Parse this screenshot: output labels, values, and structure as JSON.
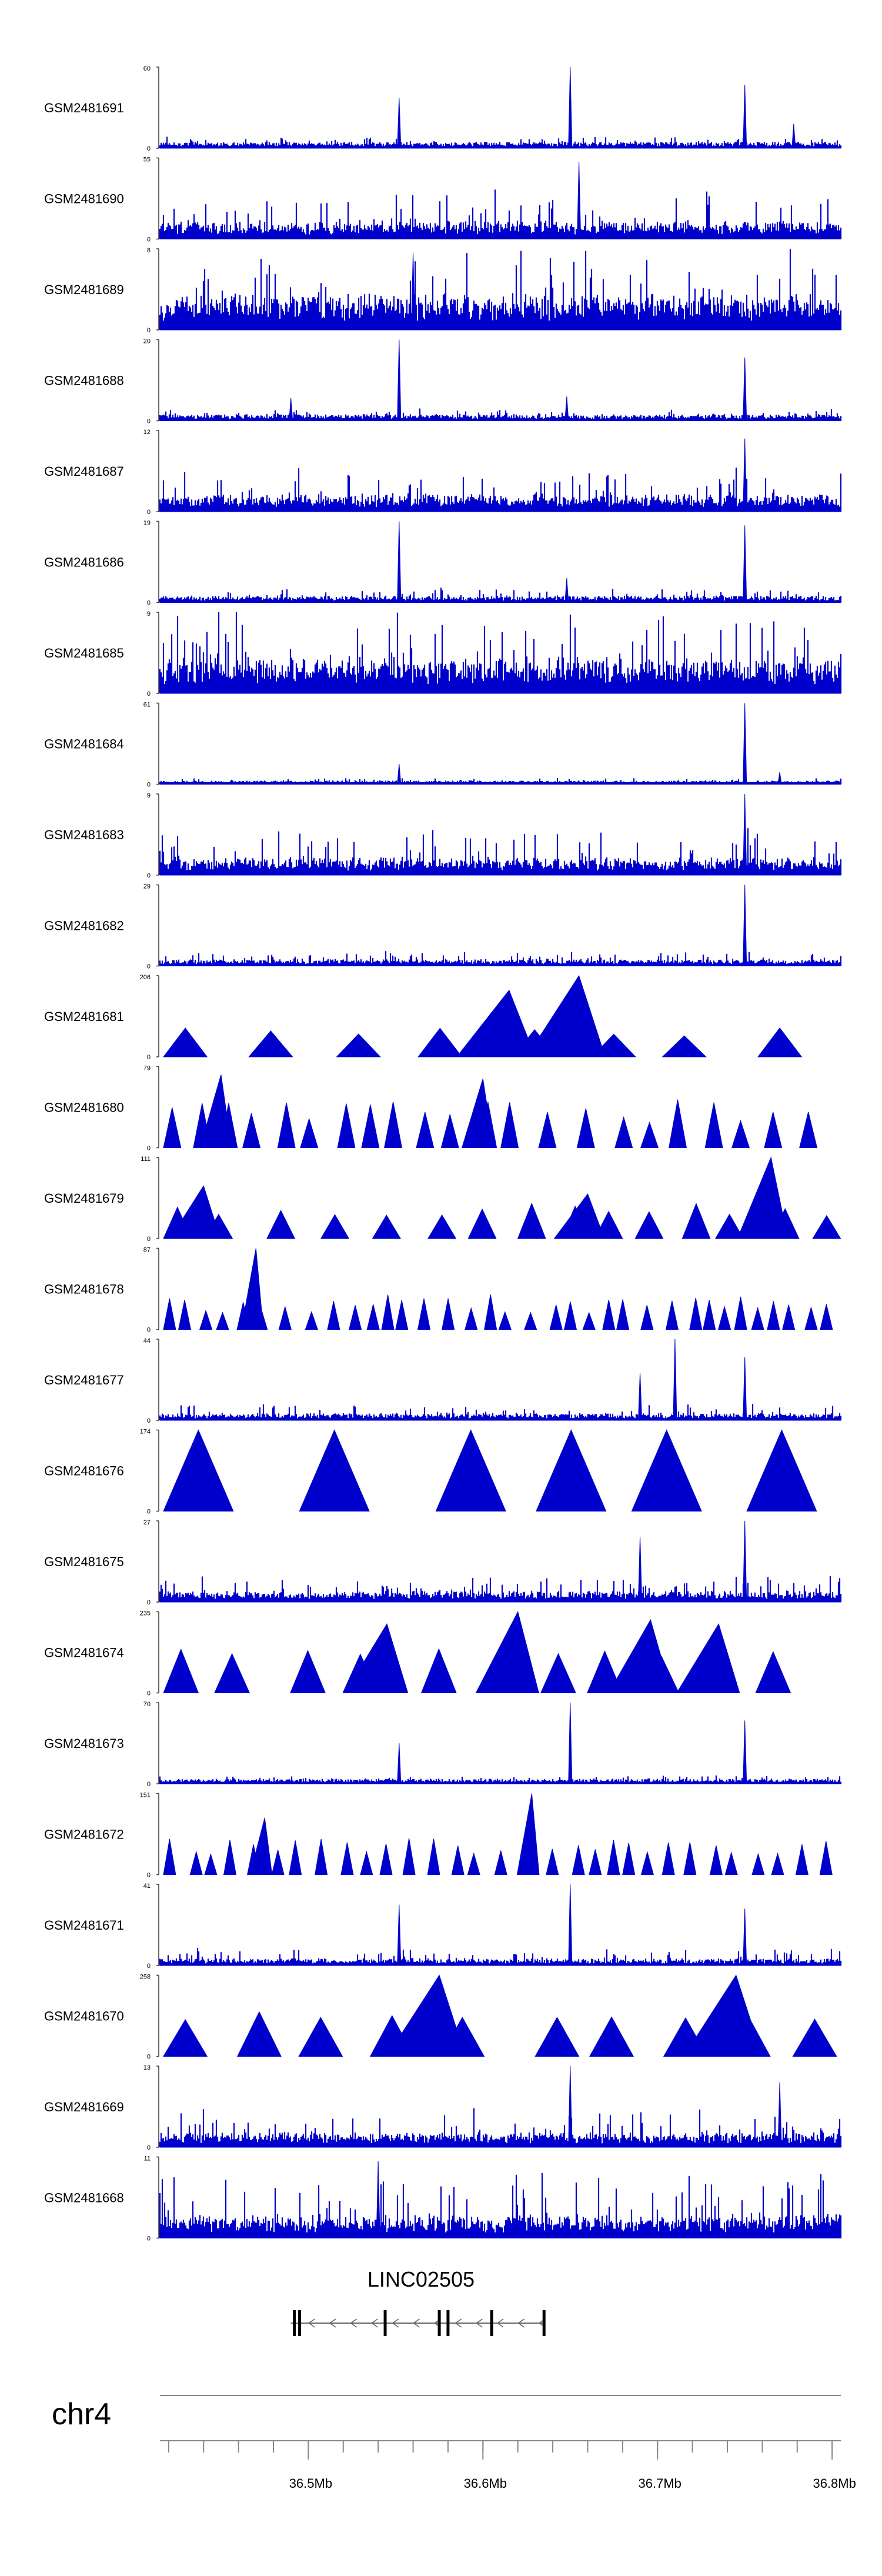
{
  "chart_data": {
    "type": "area",
    "chromosome": "chr4",
    "x_range_mb": [
      36.415,
      36.805
    ],
    "x_ticks": [
      {
        "mb": 36.5,
        "label": "36.5Mb"
      },
      {
        "mb": 36.6,
        "label": "36.6Mb"
      },
      {
        "mb": 36.7,
        "label": "36.7Mb"
      },
      {
        "mb": 36.8,
        "label": "36.8Mb"
      }
    ],
    "gene": {
      "name": "LINC02505",
      "start_mb": 36.49,
      "end_mb": 36.635,
      "exons_mb": [
        36.492,
        36.495,
        36.544,
        36.575,
        36.58,
        36.605,
        36.635
      ]
    },
    "tracks": [
      {
        "name": "GSM2481691",
        "ymin": 0,
        "ymax": 60,
        "style": "noise",
        "base": 0.05,
        "noise": 0.08,
        "peaks": [
          {
            "mb": 36.552,
            "h": 0.62
          },
          {
            "mb": 36.65,
            "h": 1.0
          },
          {
            "mb": 36.75,
            "h": 0.78
          },
          {
            "mb": 36.778,
            "h": 0.3
          }
        ]
      },
      {
        "name": "GSM2481690",
        "ymin": 0,
        "ymax": 55,
        "style": "noise",
        "base": 0.12,
        "noise": 0.45,
        "peaks": [
          {
            "mb": 36.655,
            "h": 0.95
          }
        ]
      },
      {
        "name": "GSM2481689",
        "ymin": 0,
        "ymax": 8,
        "style": "noise",
        "base": 0.25,
        "noise": 0.75,
        "peaks": [
          {
            "mb": 36.56,
            "h": 0.95
          }
        ]
      },
      {
        "name": "GSM2481688",
        "ymin": 0,
        "ymax": 20,
        "style": "noise",
        "base": 0.05,
        "noise": 0.1,
        "peaks": [
          {
            "mb": 36.552,
            "h": 1.0
          },
          {
            "mb": 36.49,
            "h": 0.28
          },
          {
            "mb": 36.648,
            "h": 0.3
          },
          {
            "mb": 36.75,
            "h": 0.78
          }
        ]
      },
      {
        "name": "GSM2481687",
        "ymin": 0,
        "ymax": 12,
        "style": "noise",
        "base": 0.12,
        "noise": 0.4,
        "peaks": [
          {
            "mb": 36.75,
            "h": 0.9
          }
        ]
      },
      {
        "name": "GSM2481686",
        "ymin": 0,
        "ymax": 19,
        "style": "noise",
        "base": 0.05,
        "noise": 0.12,
        "peaks": [
          {
            "mb": 36.552,
            "h": 1.0
          },
          {
            "mb": 36.648,
            "h": 0.3
          },
          {
            "mb": 36.75,
            "h": 0.95
          }
        ]
      },
      {
        "name": "GSM2481685",
        "ymin": 0,
        "ymax": 9,
        "style": "noise",
        "base": 0.25,
        "noise": 0.75,
        "peaks": []
      },
      {
        "name": "GSM2481684",
        "ymin": 0,
        "ymax": 61,
        "style": "noise",
        "base": 0.03,
        "noise": 0.05,
        "peaks": [
          {
            "mb": 36.552,
            "h": 0.25
          },
          {
            "mb": 36.75,
            "h": 1.0
          },
          {
            "mb": 36.77,
            "h": 0.15
          }
        ]
      },
      {
        "name": "GSM2481683",
        "ymin": 0,
        "ymax": 9,
        "style": "noise",
        "base": 0.12,
        "noise": 0.45,
        "peaks": [
          {
            "mb": 36.75,
            "h": 1.0
          }
        ]
      },
      {
        "name": "GSM2481682",
        "ymin": 0,
        "ymax": 29,
        "style": "noise",
        "base": 0.05,
        "noise": 0.12,
        "peaks": [
          {
            "mb": 36.75,
            "h": 1.0
          }
        ]
      },
      {
        "name": "GSM2481681",
        "ymin": 0,
        "ymax": 206,
        "style": "tri",
        "seed": 11,
        "triW": 0.025,
        "triH": [
          0.25,
          0.42
        ],
        "bigs": [
          {
            "mb": 36.615,
            "h": 0.82
          },
          {
            "mb": 36.655,
            "h": 1.0
          }
        ]
      },
      {
        "name": "GSM2481680",
        "ymin": 0,
        "ymax": 79,
        "style": "tri",
        "seed": 12,
        "triW": 0.01,
        "triH": [
          0.3,
          0.6
        ],
        "bigs": [
          {
            "mb": 36.45,
            "h": 0.9
          },
          {
            "mb": 36.6,
            "h": 0.85
          }
        ]
      },
      {
        "name": "GSM2481679",
        "ymin": 0,
        "ymax": 111,
        "style": "tri",
        "seed": 13,
        "triW": 0.016,
        "triH": [
          0.25,
          0.45
        ],
        "bigs": [
          {
            "mb": 36.44,
            "h": 0.65
          },
          {
            "mb": 36.66,
            "h": 0.55
          },
          {
            "mb": 36.765,
            "h": 1.0
          }
        ]
      },
      {
        "name": "GSM2481678",
        "ymin": 0,
        "ymax": 87,
        "style": "tri",
        "seed": 14,
        "triW": 0.007,
        "triH": [
          0.2,
          0.45
        ],
        "bigs": [
          {
            "mb": 36.47,
            "h": 1.0
          }
        ]
      },
      {
        "name": "GSM2481677",
        "ymin": 0,
        "ymax": 44,
        "style": "noise",
        "base": 0.05,
        "noise": 0.15,
        "peaks": [
          {
            "mb": 36.69,
            "h": 0.58
          },
          {
            "mb": 36.71,
            "h": 1.0
          },
          {
            "mb": 36.75,
            "h": 0.78
          }
        ]
      },
      {
        "name": "GSM2481676",
        "ymin": 0,
        "ymax": 174,
        "style": "tri",
        "seed": 15,
        "triW": 0.04,
        "triH": [
          1.0,
          1.0
        ],
        "bigs": []
      },
      {
        "name": "GSM2481675",
        "ymin": 0,
        "ymax": 27,
        "style": "noise",
        "base": 0.08,
        "noise": 0.22,
        "peaks": [
          {
            "mb": 36.69,
            "h": 0.8
          },
          {
            "mb": 36.75,
            "h": 1.0
          }
        ]
      },
      {
        "name": "GSM2481674",
        "ymin": 0,
        "ymax": 235,
        "style": "tri",
        "seed": 16,
        "triW": 0.02,
        "triH": [
          0.45,
          0.55
        ],
        "bigs": [
          {
            "mb": 36.545,
            "h": 0.85
          },
          {
            "mb": 36.62,
            "h": 1.0
          },
          {
            "mb": 36.696,
            "h": 0.9
          },
          {
            "mb": 36.735,
            "h": 0.85
          }
        ]
      },
      {
        "name": "GSM2481673",
        "ymin": 0,
        "ymax": 70,
        "style": "noise",
        "base": 0.04,
        "noise": 0.06,
        "peaks": [
          {
            "mb": 36.552,
            "h": 0.5
          },
          {
            "mb": 36.65,
            "h": 1.0
          },
          {
            "mb": 36.75,
            "h": 0.78
          }
        ]
      },
      {
        "name": "GSM2481672",
        "ymin": 0,
        "ymax": 151,
        "style": "tri",
        "seed": 17,
        "triW": 0.007,
        "triH": [
          0.25,
          0.45
        ],
        "bigs": [
          {
            "mb": 36.475,
            "h": 0.7
          },
          {
            "mb": 36.628,
            "h": 1.0
          }
        ]
      },
      {
        "name": "GSM2481671",
        "ymin": 0,
        "ymax": 41,
        "style": "noise",
        "base": 0.05,
        "noise": 0.16,
        "peaks": [
          {
            "mb": 36.552,
            "h": 0.75
          },
          {
            "mb": 36.65,
            "h": 1.0
          },
          {
            "mb": 36.75,
            "h": 0.7
          }
        ]
      },
      {
        "name": "GSM2481670",
        "ymin": 0,
        "ymax": 258,
        "style": "tri",
        "seed": 18,
        "triW": 0.025,
        "triH": [
          0.45,
          0.55
        ],
        "bigs": [
          {
            "mb": 36.575,
            "h": 1.0
          },
          {
            "mb": 36.745,
            "h": 1.0
          }
        ]
      },
      {
        "name": "GSM2481669",
        "ymin": 0,
        "ymax": 13,
        "style": "noise",
        "base": 0.1,
        "noise": 0.35,
        "peaks": [
          {
            "mb": 36.65,
            "h": 1.0
          },
          {
            "mb": 36.77,
            "h": 0.8
          }
        ]
      },
      {
        "name": "GSM2481668",
        "ymin": 0,
        "ymax": 11,
        "style": "noise",
        "base": 0.15,
        "noise": 0.65,
        "peaks": [
          {
            "mb": 36.54,
            "h": 0.95
          }
        ]
      }
    ]
  }
}
